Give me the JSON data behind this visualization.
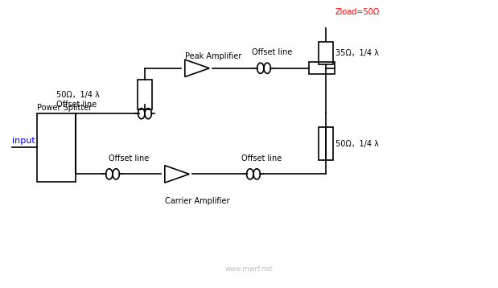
{
  "bg_color": "#ffffff",
  "line_color": "#000000",
  "input_label": "input",
  "input_label_color": "#0000ff",
  "labels": {
    "power_splitter": "Power Splitter",
    "offset_line_top": "Offset line",
    "offset_line_mid": "Offset line",
    "offset_line_bot_left": "Offset line",
    "offset_line_bot_right": "Offset line",
    "carrier_amp": "Carrier Amplifier",
    "peak_amp": "Peak Amplifier",
    "res1": "50Ω，1/4 λ",
    "res2": "35Ω，1/4 λ",
    "res3": "50Ω，1/4 λ",
    "zload": "Zload=50Ω"
  },
  "watermark": "www.mwrf.net"
}
